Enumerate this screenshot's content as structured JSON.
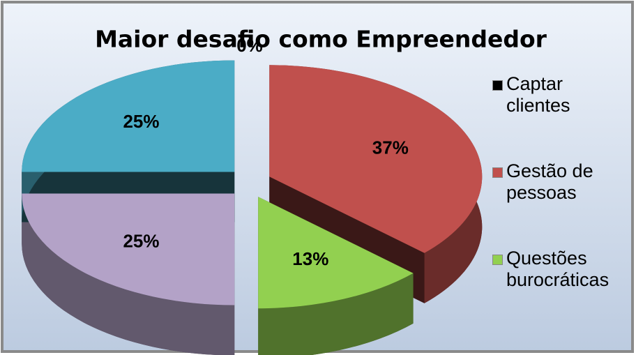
{
  "chart_data": {
    "type": "pie",
    "title": "Maior desafio como Empreendedor",
    "categories": [
      "Captar clientes",
      "Gestão de pessoas",
      "Questões burocráticas",
      null,
      null
    ],
    "values": [
      0,
      37,
      13,
      25,
      25
    ],
    "value_labels": [
      "0%",
      "37%",
      "13%",
      "25%",
      "25%"
    ],
    "colors": [
      "#000000",
      "#c0504d",
      "#92d050",
      "#b3a2c7",
      "#4bacc6"
    ],
    "legend": "right"
  }
}
